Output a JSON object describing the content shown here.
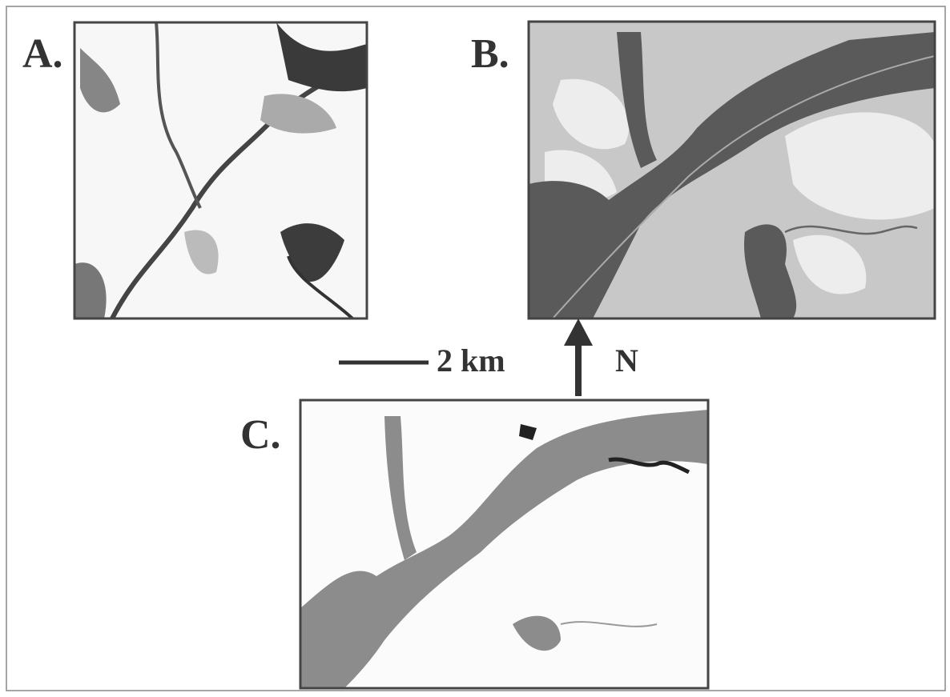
{
  "panels": [
    {
      "label": "A."
    },
    {
      "label": "B."
    },
    {
      "label": "C."
    }
  ],
  "scale_bar": {
    "label": "2 km"
  },
  "north_arrow": {
    "label": "N"
  }
}
